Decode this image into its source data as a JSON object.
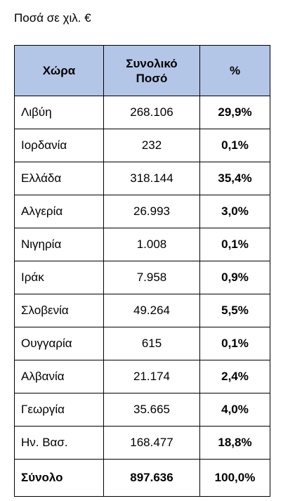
{
  "caption": "Ποσά σε χιλ. €",
  "table": {
    "headers": {
      "country": "Χώρα",
      "amount_line1": "Συνολικό",
      "amount_line2": "Ποσό",
      "percent": "%"
    },
    "rows": [
      {
        "country": "Λιβύη",
        "amount": "268.106",
        "percent": "29,9%"
      },
      {
        "country": "Ιορδανία",
        "amount": "232",
        "percent": "0,1%"
      },
      {
        "country": "Ελλάδα",
        "amount": "318.144",
        "percent": "35,4%"
      },
      {
        "country": "Αλγερία",
        "amount": "26.993",
        "percent": "3,0%"
      },
      {
        "country": "Νιγηρία",
        "amount": "1.008",
        "percent": "0,1%"
      },
      {
        "country": "Ιράκ",
        "amount": "7.958",
        "percent": "0,9%"
      },
      {
        "country": "Σλοβενία",
        "amount": "49.264",
        "percent": "5,5%"
      },
      {
        "country": "Ουγγαρία",
        "amount": "615",
        "percent": "0,1%"
      },
      {
        "country": "Αλβανία",
        "amount": "21.174",
        "percent": "2,4%"
      },
      {
        "country": "Γεωργία",
        "amount": "35.665",
        "percent": "4,0%"
      },
      {
        "country": "Ην. Βασ.",
        "amount": "168.477",
        "percent": "18,8%"
      }
    ],
    "total": {
      "label": "Σύνολο",
      "amount": "897.636",
      "percent": "100,0%"
    }
  },
  "colors": {
    "header_background": "#b4c6e7",
    "border": "#000000"
  }
}
